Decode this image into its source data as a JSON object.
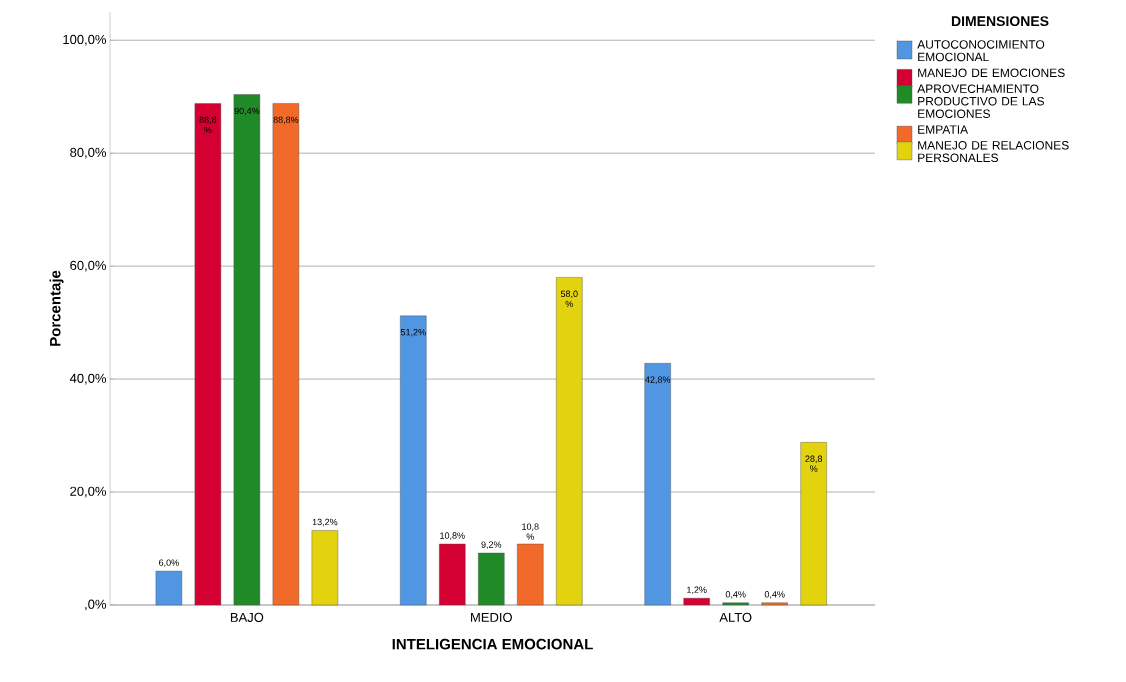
{
  "chart_data": {
    "type": "bar",
    "xlabel": "INTELIGENCIA EMOCIONAL",
    "ylabel": "Porcentaje",
    "legend_title": "DIMENSIONES",
    "legend": "top right",
    "grid": "y",
    "categories": [
      "BAJO",
      "MEDIO",
      "ALTO"
    ],
    "ylim": [
      0,
      105
    ],
    "yticks": [
      {
        "value": 0,
        "label": ",0%"
      },
      {
        "value": 20,
        "label": "20,0%"
      },
      {
        "value": 40,
        "label": "40,0%"
      },
      {
        "value": 60,
        "label": "60,0%"
      },
      {
        "value": 80,
        "label": "80,0%"
      },
      {
        "value": 100,
        "label": "100,0%"
      }
    ],
    "series": [
      {
        "name": "AUTOCONOCIMIENTO EMOCIONAL",
        "color": "#5196e3",
        "values": [
          6.0,
          51.2,
          42.8
        ],
        "value_labels": [
          "6,0%",
          "51,2%",
          "42,8%"
        ]
      },
      {
        "name": "MANEJO DE EMOCIONES",
        "color": "#d50032",
        "values": [
          88.8,
          10.8,
          1.2
        ],
        "value_labels": [
          "88,8 %",
          "10,8%",
          "1,2%"
        ]
      },
      {
        "name": "APROVECHAMIENTO PRODUCTIVO DE LAS EMOCIONES",
        "color": "#218a28",
        "values": [
          90.4,
          9.2,
          0.4
        ],
        "value_labels": [
          "90,4%",
          "9,2%",
          "0,4%"
        ]
      },
      {
        "name": "EMPATIA",
        "color": "#f26a29",
        "values": [
          88.8,
          10.8,
          0.4
        ],
        "value_labels": [
          "88,8%",
          "10,8 %",
          "0,4%"
        ]
      },
      {
        "name": "MANEJO DE RELACIONES PERSONALES",
        "color": "#e3d30f",
        "values": [
          13.2,
          58.0,
          28.8
        ],
        "value_labels": [
          "13,2%",
          "58,0 %",
          "28,8 %"
        ]
      }
    ]
  }
}
